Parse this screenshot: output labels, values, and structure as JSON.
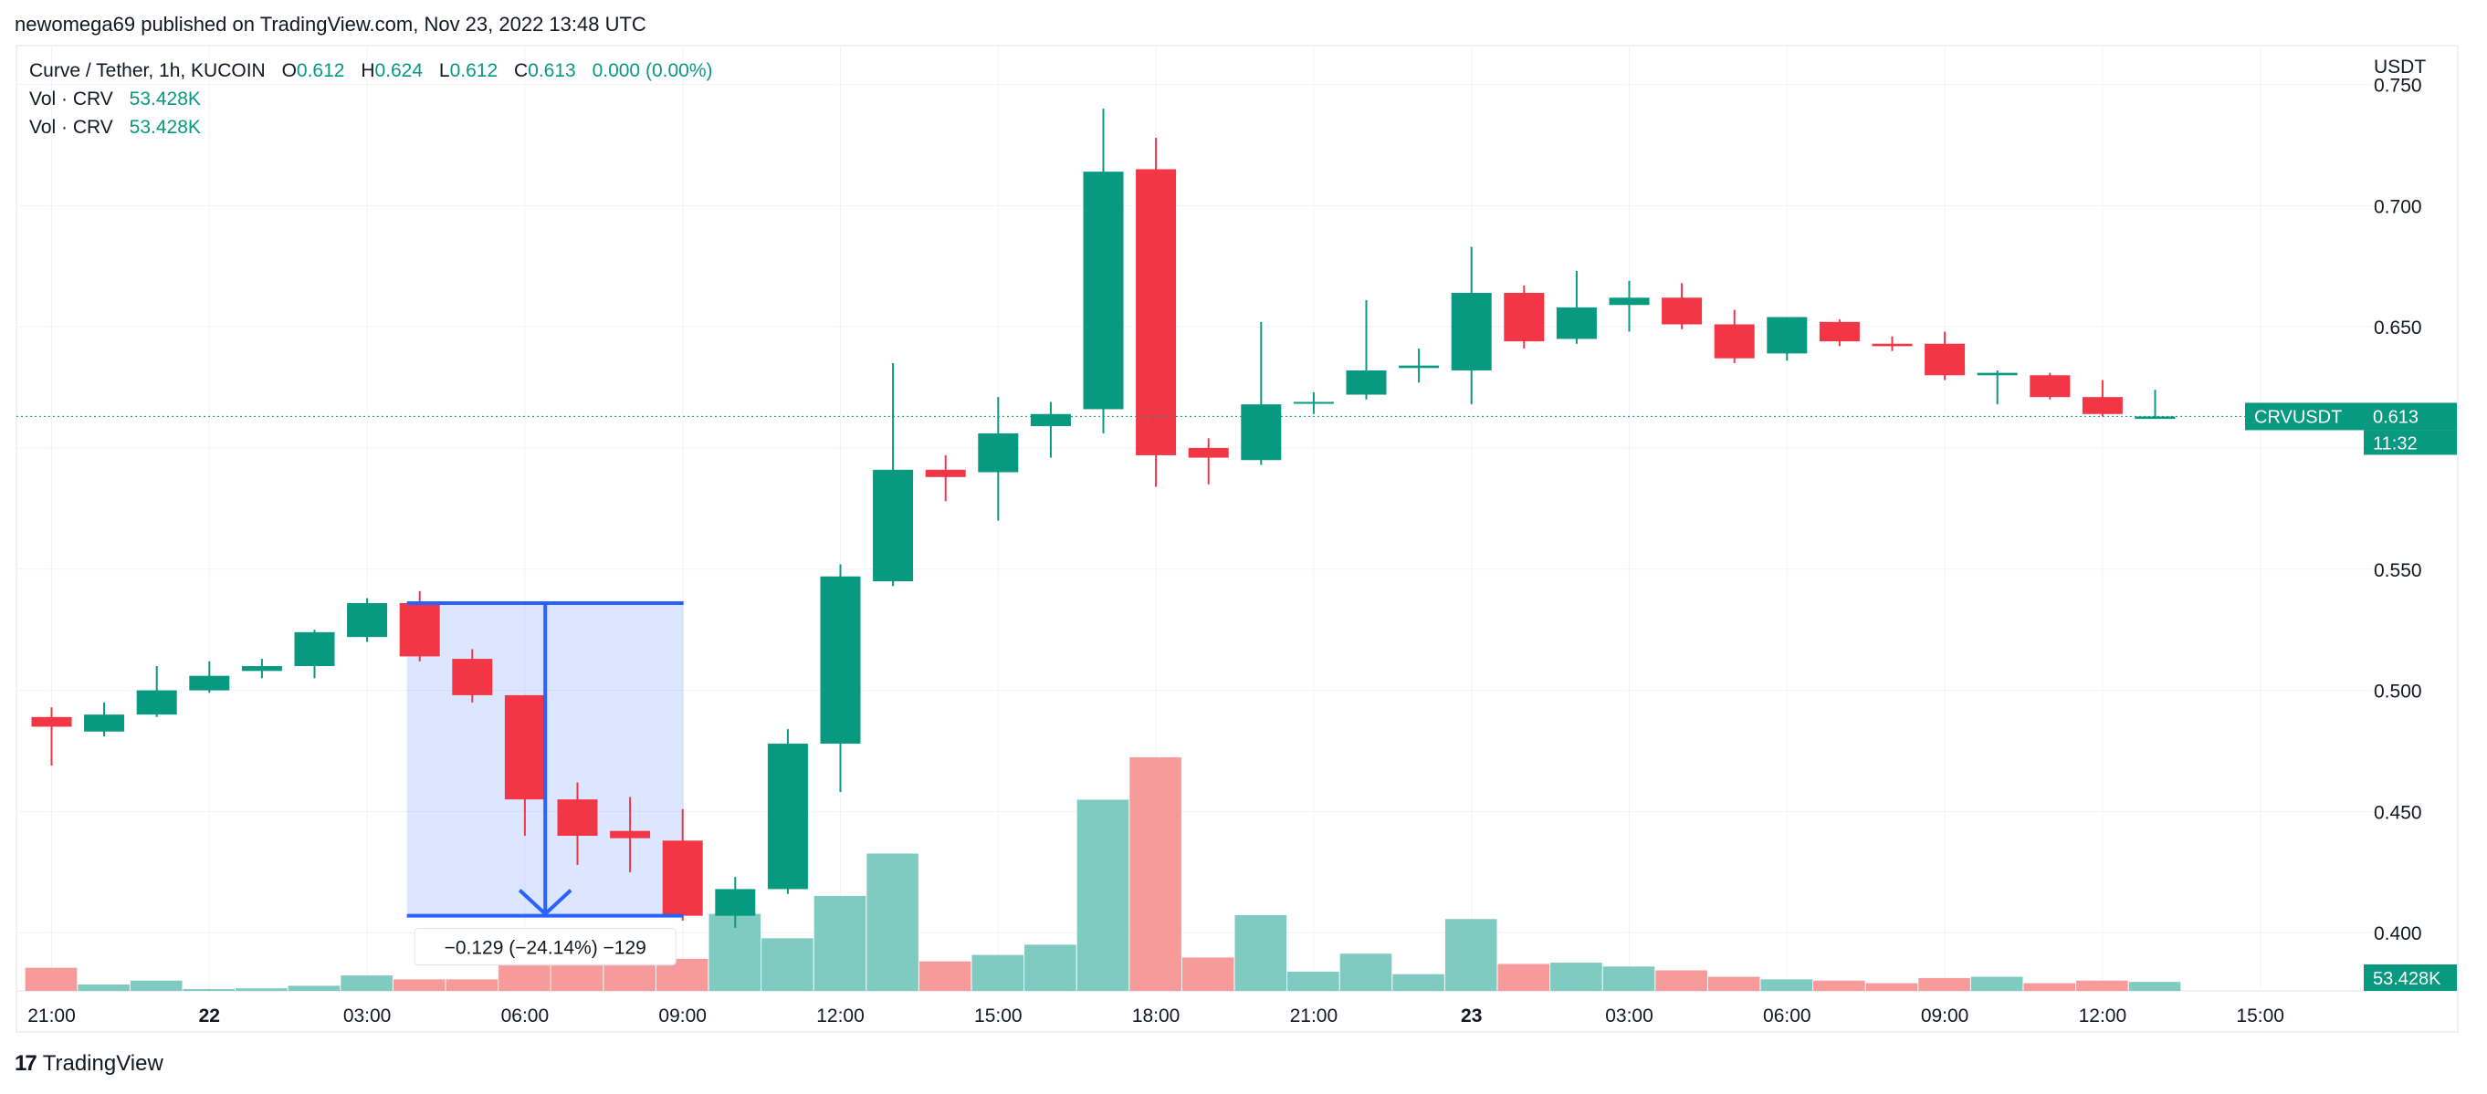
{
  "header": {
    "publisher": "newomega69 published on TradingView.com, Nov 23, 2022 13:48 UTC"
  },
  "legend": {
    "symbol": "Curve / Tether, 1h, KUCOIN",
    "open_label": "O",
    "open": "0.612",
    "high_label": "H",
    "high": "0.624",
    "low_label": "L",
    "low": "0.612",
    "close_label": "C",
    "close": "0.613",
    "change": "0.000 (0.00%)",
    "vol_rows": [
      {
        "label": "Vol · CRV",
        "value": "53.428K"
      },
      {
        "label": "Vol · CRV",
        "value": "53.428K"
      }
    ]
  },
  "footer": {
    "brand_mark": "17",
    "brand_name": "TradingView"
  },
  "colors": {
    "up": "#089981",
    "down": "#f23645",
    "vol_up": "#80cbc1",
    "vol_down": "#f79b9a",
    "measure": "#2962ff",
    "grid": "#f0f3fa"
  },
  "chart_data": {
    "type": "candlestick",
    "symbol": "CRVUSDT",
    "currency": "USDT",
    "interval": "1h",
    "ylim": [
      0.376,
      0.766
    ],
    "y_ticks": [
      0.4,
      0.45,
      0.5,
      0.55,
      0.6,
      0.65,
      0.7,
      0.75
    ],
    "y_tick_labels": [
      "0.400",
      "0.450",
      "0.500",
      "0.550",
      "",
      "0.650",
      "0.700",
      "0.750"
    ],
    "x_ticks": [
      {
        "index": 0,
        "label": "21:00",
        "bold": false
      },
      {
        "index": 3,
        "label": "22",
        "bold": true
      },
      {
        "index": 6,
        "label": "03:00",
        "bold": false
      },
      {
        "index": 9,
        "label": "06:00",
        "bold": false
      },
      {
        "index": 12,
        "label": "09:00",
        "bold": false
      },
      {
        "index": 15,
        "label": "12:00",
        "bold": false
      },
      {
        "index": 18,
        "label": "15:00",
        "bold": false
      },
      {
        "index": 21,
        "label": "18:00",
        "bold": false
      },
      {
        "index": 24,
        "label": "21:00",
        "bold": false
      },
      {
        "index": 27,
        "label": "23",
        "bold": true
      },
      {
        "index": 30,
        "label": "03:00",
        "bold": false
      },
      {
        "index": 33,
        "label": "06:00",
        "bold": false
      },
      {
        "index": 36,
        "label": "09:00",
        "bold": false
      },
      {
        "index": 39,
        "label": "12:00",
        "bold": false
      },
      {
        "index": 42,
        "label": "15:00",
        "bold": false
      }
    ],
    "candles": [
      [
        0.489,
        0.493,
        0.469,
        0.485
      ],
      [
        0.483,
        0.495,
        0.481,
        0.49
      ],
      [
        0.49,
        0.51,
        0.489,
        0.5
      ],
      [
        0.5,
        0.512,
        0.499,
        0.506
      ],
      [
        0.508,
        0.513,
        0.505,
        0.51
      ],
      [
        0.51,
        0.525,
        0.505,
        0.524
      ],
      [
        0.522,
        0.538,
        0.52,
        0.536
      ],
      [
        0.536,
        0.541,
        0.512,
        0.514
      ],
      [
        0.513,
        0.517,
        0.495,
        0.498
      ],
      [
        0.498,
        0.498,
        0.44,
        0.455
      ],
      [
        0.455,
        0.462,
        0.428,
        0.44
      ],
      [
        0.442,
        0.456,
        0.425,
        0.439
      ],
      [
        0.438,
        0.451,
        0.405,
        0.407
      ],
      [
        0.407,
        0.423,
        0.402,
        0.418
      ],
      [
        0.418,
        0.484,
        0.416,
        0.478
      ],
      [
        0.478,
        0.552,
        0.458,
        0.547
      ],
      [
        0.545,
        0.635,
        0.543,
        0.591
      ],
      [
        0.591,
        0.597,
        0.578,
        0.588
      ],
      [
        0.59,
        0.621,
        0.57,
        0.606
      ],
      [
        0.609,
        0.619,
        0.596,
        0.614
      ],
      [
        0.616,
        0.74,
        0.606,
        0.714
      ],
      [
        0.715,
        0.728,
        0.584,
        0.597
      ],
      [
        0.6,
        0.604,
        0.585,
        0.596
      ],
      [
        0.595,
        0.652,
        0.593,
        0.618
      ],
      [
        0.619,
        0.623,
        0.614,
        0.619
      ],
      [
        0.622,
        0.661,
        0.62,
        0.632
      ],
      [
        0.633,
        0.641,
        0.627,
        0.634
      ],
      [
        0.632,
        0.683,
        0.618,
        0.664
      ],
      [
        0.664,
        0.667,
        0.641,
        0.644
      ],
      [
        0.645,
        0.673,
        0.643,
        0.658
      ],
      [
        0.659,
        0.669,
        0.648,
        0.662
      ],
      [
        0.662,
        0.668,
        0.649,
        0.651
      ],
      [
        0.651,
        0.657,
        0.635,
        0.637
      ],
      [
        0.639,
        0.654,
        0.636,
        0.654
      ],
      [
        0.652,
        0.653,
        0.642,
        0.644
      ],
      [
        0.643,
        0.646,
        0.64,
        0.642
      ],
      [
        0.643,
        0.648,
        0.628,
        0.63
      ],
      [
        0.63,
        0.632,
        0.618,
        0.631
      ],
      [
        0.63,
        0.631,
        0.62,
        0.621
      ],
      [
        0.621,
        0.628,
        0.613,
        0.614
      ],
      [
        0.612,
        0.624,
        0.612,
        0.613
      ]
    ],
    "volumes": [
      1.8,
      0.5,
      0.8,
      0.1,
      0.2,
      0.4,
      1.2,
      0.9,
      0.9,
      2.4,
      2.4,
      2.3,
      2.5,
      6.0,
      4.1,
      7.4,
      10.7,
      2.3,
      2.8,
      3.6,
      14.9,
      18.2,
      2.6,
      5.9,
      1.5,
      2.9,
      1.3,
      5.6,
      2.1,
      2.2,
      1.9,
      1.6,
      1.1,
      0.9,
      0.8,
      0.6,
      1.0,
      1.1,
      0.6,
      0.8,
      0.7
    ],
    "last_price": 0.613,
    "price_tag": {
      "label": "CRVUSDT",
      "value": "0.613",
      "countdown": "11:32"
    },
    "volume_tag": "53.428K",
    "measure": {
      "from_index": 7,
      "to_index": 12,
      "from_price": 0.536,
      "to_price": 0.407,
      "label": "−0.129 (−24.14%) −129"
    },
    "grid": true
  }
}
